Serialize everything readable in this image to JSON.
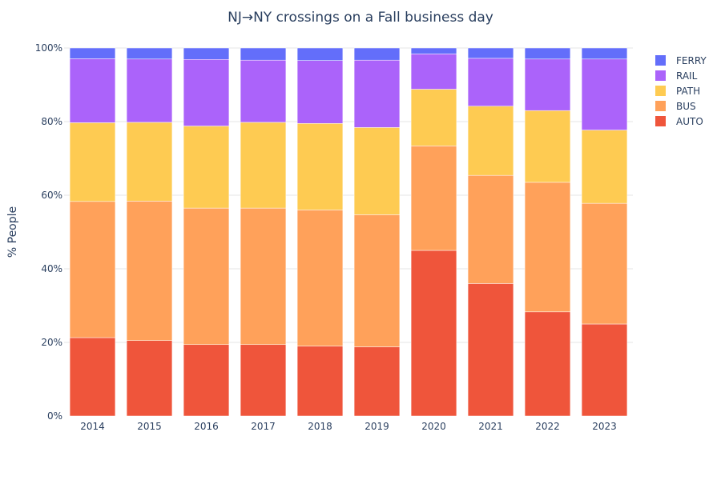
{
  "chart_data": {
    "type": "bar",
    "stacked": true,
    "title": "NJ→NY crossings on a Fall business day",
    "xlabel": "",
    "ylabel": "% People",
    "ylim": [
      0,
      100
    ],
    "y_tick_values": [
      0,
      20,
      40,
      60,
      80,
      100
    ],
    "y_tick_labels": [
      "0%",
      "20%",
      "40%",
      "60%",
      "80%",
      "100%"
    ],
    "categories": [
      "2014",
      "2015",
      "2016",
      "2017",
      "2018",
      "2019",
      "2020",
      "2021",
      "2022",
      "2023"
    ],
    "series": [
      {
        "name": "AUTO",
        "color": "#EF553B",
        "values": [
          21.3,
          20.5,
          19.4,
          19.4,
          19.0,
          18.8,
          45.0,
          36.0,
          28.3,
          25.0
        ]
      },
      {
        "name": "BUS",
        "color": "#FFA15A",
        "values": [
          37.0,
          37.9,
          37.1,
          37.1,
          37.0,
          35.9,
          28.4,
          29.4,
          35.2,
          32.8
        ]
      },
      {
        "name": "PATH",
        "color": "#FECB52",
        "values": [
          21.4,
          21.4,
          22.3,
          23.3,
          23.5,
          23.7,
          15.4,
          18.8,
          19.5,
          19.9
        ]
      },
      {
        "name": "RAIL",
        "color": "#AB63FA",
        "values": [
          17.4,
          17.2,
          18.1,
          16.9,
          17.1,
          18.3,
          9.6,
          13.0,
          14.0,
          19.3
        ]
      },
      {
        "name": "FERRY",
        "color": "#636EFA",
        "values": [
          2.9,
          3.0,
          3.1,
          3.3,
          3.4,
          3.3,
          1.6,
          2.8,
          3.0,
          3.0
        ]
      }
    ],
    "legend_order": [
      "FERRY",
      "RAIL",
      "PATH",
      "BUS",
      "AUTO"
    ],
    "legend_position": "top-right",
    "grid": true
  }
}
